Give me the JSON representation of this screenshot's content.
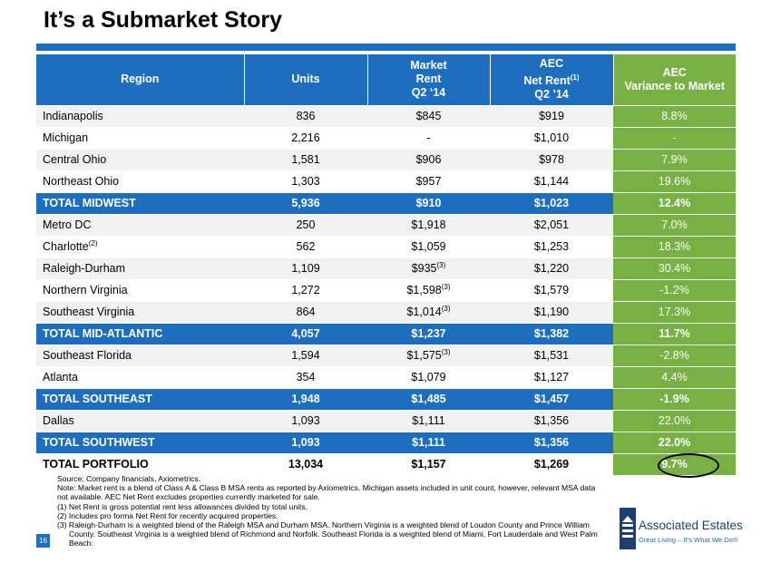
{
  "title": "It’s a Submarket Story",
  "table": {
    "headers": {
      "region": "Region",
      "units": "Units",
      "market_rent": [
        "Market",
        "Rent",
        "Q2 ‘14"
      ],
      "aec_net_rent": [
        "AEC",
        "Net Rent",
        "Q2 ’14"
      ],
      "aec_net_rent_note": "(1)",
      "variance": [
        "AEC",
        "Variance to Market"
      ]
    },
    "rows": [
      {
        "region": "Indianapolis",
        "region_note": "",
        "units": "836",
        "market": "$845",
        "market_note": "",
        "aec": "$919",
        "variance": "8.8%",
        "type": "a"
      },
      {
        "region": "Michigan",
        "region_note": "",
        "units": "2,216",
        "market": "-",
        "market_note": "",
        "aec": "$1,010",
        "variance": "-",
        "type": "b"
      },
      {
        "region": "Central Ohio",
        "region_note": "",
        "units": "1,581",
        "market": "$906",
        "market_note": "",
        "aec": "$978",
        "variance": "7.9%",
        "type": "a"
      },
      {
        "region": "Northeast Ohio",
        "region_note": "",
        "units": "1,303",
        "market": "$957",
        "market_note": "",
        "aec": "$1,144",
        "variance": "19.6%",
        "type": "b"
      },
      {
        "region": "TOTAL MIDWEST",
        "region_note": "",
        "units": "5,936",
        "market": "$910",
        "market_note": "",
        "aec": "$1,023",
        "variance": "12.4%",
        "type": "total"
      },
      {
        "region": "Metro DC",
        "region_note": "",
        "units": "250",
        "market": "$1,918",
        "market_note": "",
        "aec": "$2,051",
        "variance": "7.0%",
        "type": "a"
      },
      {
        "region": "Charlotte",
        "region_note": "(2)",
        "units": "562",
        "market": "$1,059",
        "market_note": "",
        "aec": "$1,253",
        "variance": "18.3%",
        "type": "b"
      },
      {
        "region": "Raleigh-Durham",
        "region_note": "",
        "units": "1,109",
        "market": "$935",
        "market_note": "(3)",
        "aec": "$1,220",
        "variance": "30.4%",
        "type": "a"
      },
      {
        "region": "Northern Virginia",
        "region_note": "",
        "units": "1,272",
        "market": "$1,598",
        "market_note": "(3)",
        "aec": "$1,579",
        "variance": "-1.2%",
        "type": "b"
      },
      {
        "region": "Southeast Virginia",
        "region_note": "",
        "units": "864",
        "market": "$1,014",
        "market_note": "(3)",
        "aec": "$1,190",
        "variance": "17.3%",
        "type": "a"
      },
      {
        "region": "TOTAL MID-ATLANTIC",
        "region_note": "",
        "units": "4,057",
        "market": "$1,237",
        "market_note": "",
        "aec": "$1,382",
        "variance": "11.7%",
        "type": "total"
      },
      {
        "region": "Southeast Florida",
        "region_note": "",
        "units": "1,594",
        "market": "$1,575",
        "market_note": "(3)",
        "aec": "$1,531",
        "variance": "-2.8%",
        "type": "a"
      },
      {
        "region": "Atlanta",
        "region_note": "",
        "units": "354",
        "market": "$1,079",
        "market_note": "",
        "aec": "$1,127",
        "variance": "4.4%",
        "type": "b"
      },
      {
        "region": "TOTAL SOUTHEAST",
        "region_note": "",
        "units": "1,948",
        "market": "$1,485",
        "market_note": "",
        "aec": "$1,457",
        "variance": "-1.9%",
        "type": "total"
      },
      {
        "region": "Dallas",
        "region_note": "",
        "units": "1,093",
        "market": "$1,111",
        "market_note": "",
        "aec": "$1,356",
        "variance": "22.0%",
        "type": "a"
      },
      {
        "region": "TOTAL SOUTHWEST",
        "region_note": "",
        "units": "1,093",
        "market": "$1,111",
        "market_note": "",
        "aec": "$1,356",
        "variance": "22.0%",
        "type": "total"
      },
      {
        "region": "TOTAL PORTFOLIO",
        "region_note": "",
        "units": "13,034",
        "market": "$1,157",
        "market_note": "",
        "aec": "$1,269",
        "variance": "9.7%",
        "type": "portfolio"
      }
    ]
  },
  "footnotes": {
    "source": "Source: Company financials, Axiometrics.",
    "note": "Note:  Market rent is a blend of Class A & Class B MSA rents as reported by Axiometrics. Michigan assets included in unit count, however, relevant MSA data not available.  AEC Net Rent excludes properties currently marketed for sale.",
    "fn1": "(1)  Net Rent is gross potential rent less allowances divided by total units.",
    "fn2": "(2)  Includes pro forma Net Rent for recently acquired properties.",
    "fn3": "(3)  Raleigh-Durham is a weighted blend of the Raleigh MSA and Durham MSA. Northern Virginia is a weighted blend of Loudon County and Prince William County. Southeast Virginia is a weighted blend of Richmond and Norfolk.  Southeast Florida is a weighted blend of Miami, Fort Lauderdale and West Palm Beach."
  },
  "page_number": "16",
  "logo": {
    "name": "Associated Estates",
    "tagline": "Great Living – It’s What We Do®"
  },
  "colors": {
    "header_blue": "#1e6ec0",
    "variance_green": "#77b043",
    "logo_navy": "#1f3f73"
  }
}
